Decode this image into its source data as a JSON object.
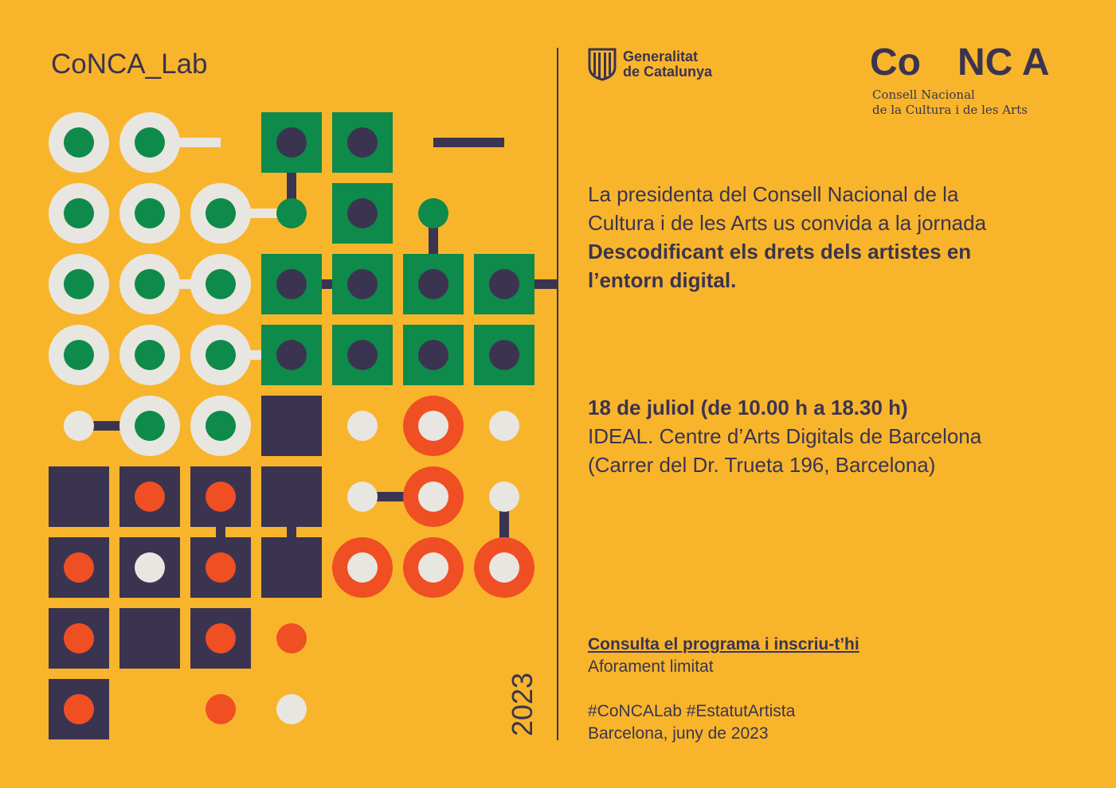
{
  "brand": "CoNCA_Lab",
  "year": "2023",
  "generalitat": {
    "line1": "Generalitat",
    "line2": "de Catalunya"
  },
  "conca": {
    "logo_left": "Co",
    "logo_right": "NC A",
    "subtitle_line1": "Consell Nacional",
    "subtitle_line2": "de la Cultura i de les Arts"
  },
  "invitation": {
    "line1": "La presidenta del Consell Nacional de la",
    "line2": "Cultura i de les Arts us convida a la jornada",
    "title_line1": "Descodificant els drets dels artistes en",
    "title_line2": "l’entorn digital."
  },
  "event": {
    "date": "18 de juliol (de 10.00 h a 18.30 h)",
    "venue": "IDEAL. Centre d’Arts Digitals de Barcelona",
    "address": "(Carrer del Dr. Trueta 196, Barcelona)"
  },
  "footer": {
    "link": "Consulta el programa i inscriu-t’hi",
    "capacity": "Aforament limitat",
    "hashtags": "#CoNCALab #EstatutArtista",
    "place_date": "Barcelona, juny de 2023"
  },
  "colors": {
    "background": "#F8B52B",
    "dark": "#3B3450",
    "green": "#0E8A4A",
    "light": "#E8E6E1",
    "red": "#F04E23"
  },
  "pattern": {
    "rows": [
      [
        "ring-green",
        "ring-green",
        "empty",
        "sq-green",
        "sq-green",
        "empty",
        "empty"
      ],
      [
        "ring-green",
        "ring-green",
        "ring-green",
        "dot-green",
        "sq-green",
        "dot-green",
        "empty"
      ],
      [
        "ring-green",
        "ring-green",
        "ring-green",
        "sq-green",
        "sq-green",
        "sq-green",
        "sq-green"
      ],
      [
        "ring-green",
        "ring-green",
        "ring-green",
        "sq-green",
        "sq-green",
        "sq-green",
        "sq-green"
      ],
      [
        "dot-light",
        "ring-green",
        "ring-green",
        "sq-dark",
        "dot-light",
        "ring-red",
        "dot-light"
      ],
      [
        "sq-dark",
        "sq-red",
        "sq-red",
        "sq-dark",
        "dot-light",
        "ring-red",
        "dot-light"
      ],
      [
        "sq-red",
        "sq-light",
        "sq-red",
        "sq-dark",
        "ring-red",
        "ring-red",
        "ring-red"
      ],
      [
        "sq-red",
        "sq-dark",
        "sq-red",
        "dot-red",
        "empty",
        "empty",
        "empty"
      ],
      [
        "sq-red",
        "empty",
        "dot-red",
        "dot-light",
        "empty",
        "empty",
        "empty"
      ]
    ],
    "connectors": [
      [
        1,
        0,
        2,
        0
      ],
      [
        2,
        1,
        3,
        1
      ],
      [
        3,
        0,
        3,
        1
      ],
      [
        1,
        2,
        2,
        2
      ],
      [
        3,
        2,
        4,
        2
      ],
      [
        0,
        4,
        1,
        4
      ],
      [
        2,
        3,
        3,
        3
      ],
      [
        2,
        5,
        2,
        6
      ],
      [
        3,
        5,
        3,
        6
      ],
      [
        5,
        0,
        6,
        0
      ],
      [
        5,
        1,
        5,
        2
      ],
      [
        6,
        2,
        7,
        2
      ],
      [
        4,
        5,
        5,
        5
      ],
      [
        6,
        5,
        6,
        6
      ]
    ]
  }
}
